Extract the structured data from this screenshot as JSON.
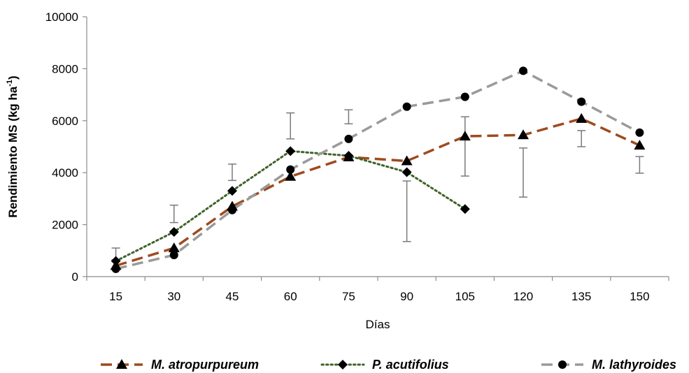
{
  "chart_data": {
    "type": "line",
    "xlabel": "Días",
    "ylabel": {
      "main": "Rendimiento MS (kg ha",
      "sup": "-1",
      "close": ")"
    },
    "ylim": [
      0,
      10000
    ],
    "yticks": [
      0,
      2000,
      4000,
      6000,
      8000,
      10000
    ],
    "ytick_labels": [
      "0",
      "2000",
      "4000",
      "6000",
      "8000",
      "10000"
    ],
    "categories": [
      "15",
      "30",
      "45",
      "60",
      "75",
      "90",
      "105",
      "120",
      "135",
      "150"
    ],
    "grid": false,
    "legend_position": "bottom",
    "series": [
      {
        "name": "M. atropurpureum",
        "color": "#9e4a1e",
        "dash": "long-dash",
        "marker": "triangle",
        "values": [
          420,
          1100,
          2700,
          3850,
          4600,
          4450,
          5400,
          5450,
          6080,
          5050
        ]
      },
      {
        "name": "P. acutifolius",
        "color": "#3f6328",
        "dash": "dotted",
        "marker": "diamond",
        "values": [
          600,
          1720,
          3300,
          4830,
          4650,
          4020,
          2600,
          null,
          null,
          null
        ]
      },
      {
        "name": "M. lathyroides",
        "color": "#9a9a9a",
        "dash": "long-dash",
        "marker": "circle",
        "values": [
          300,
          830,
          2560,
          4120,
          5300,
          6540,
          6920,
          7920,
          6730,
          5540
        ]
      }
    ],
    "error_bars": [
      {
        "category": "15",
        "low": 650,
        "high": 1100
      },
      {
        "category": "30",
        "low": 2080,
        "high": 2750
      },
      {
        "category": "45",
        "low": 3700,
        "high": 4330
      },
      {
        "category": "60",
        "low": 5300,
        "high": 6300
      },
      {
        "category": "75",
        "low": 5880,
        "high": 6420
      },
      {
        "category": "90",
        "low": 1350,
        "high": 3680
      },
      {
        "category": "105",
        "low": 3870,
        "high": 6150
      },
      {
        "category": "120",
        "low": 3060,
        "high": 4950
      },
      {
        "category": "135",
        "low": 5000,
        "high": 5620
      },
      {
        "category": "150",
        "low": 3980,
        "high": 4620
      }
    ]
  }
}
